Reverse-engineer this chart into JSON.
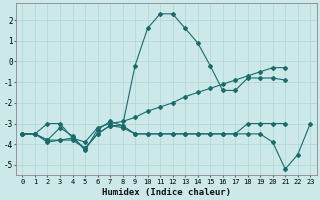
{
  "xlabel": "Humidex (Indice chaleur)",
  "background_color": "#cce8e8",
  "grid_color": "#afd4d4",
  "line_color": "#1a6b6b",
  "xlim": [
    -0.5,
    23.5
  ],
  "ylim": [
    -5.5,
    2.8
  ],
  "xticks": [
    0,
    1,
    2,
    3,
    4,
    5,
    6,
    7,
    8,
    9,
    10,
    11,
    12,
    13,
    14,
    15,
    16,
    17,
    18,
    19,
    20,
    21,
    22,
    23
  ],
  "yticks": [
    -5,
    -4,
    -3,
    -2,
    -1,
    0,
    1,
    2
  ],
  "lines": [
    {
      "x": [
        0,
        1,
        2,
        3,
        4,
        5,
        6,
        7,
        8,
        9,
        10,
        11,
        12,
        13,
        14,
        15,
        16,
        17,
        18,
        19,
        20,
        21
      ],
      "y": [
        -3.5,
        -3.5,
        -3.8,
        -3.2,
        -3.6,
        -4.3,
        -3.3,
        -2.9,
        -3.1,
        -0.2,
        1.6,
        2.3,
        2.3,
        1.6,
        0.9,
        -0.2,
        -1.4,
        -1.4,
        -0.8,
        -0.8,
        -0.8,
        -0.9
      ]
    },
    {
      "x": [
        0,
        1,
        2,
        3,
        4,
        5,
        6,
        7,
        8,
        9,
        10,
        11,
        12,
        13,
        14,
        15,
        16,
        17,
        18,
        19,
        20,
        21
      ],
      "y": [
        -3.5,
        -3.5,
        -3.9,
        -3.8,
        -3.8,
        -4.2,
        -3.5,
        -3.1,
        -3.1,
        -3.5,
        -3.5,
        -3.5,
        -3.5,
        -3.5,
        -3.5,
        -3.5,
        -3.5,
        -3.5,
        -3.0,
        -3.0,
        -3.0,
        -3.0
      ]
    },
    {
      "x": [
        0,
        1,
        2,
        3,
        4,
        5,
        6,
        7,
        8,
        9,
        10,
        11,
        12,
        13,
        14,
        15,
        16,
        17,
        18,
        19,
        20,
        21
      ],
      "y": [
        -3.5,
        -3.5,
        -3.0,
        -3.0,
        -3.7,
        -3.9,
        -3.2,
        -3.0,
        -2.9,
        -2.7,
        -2.4,
        -2.2,
        -2.0,
        -1.7,
        -1.5,
        -1.3,
        -1.1,
        -0.9,
        -0.7,
        -0.5,
        -0.3,
        -0.3
      ]
    },
    {
      "x": [
        0,
        1,
        2,
        3,
        4,
        5,
        6,
        7,
        8,
        9,
        10,
        11,
        12,
        13,
        14,
        15,
        16,
        17,
        18,
        19,
        20,
        21,
        22,
        23
      ],
      "y": [
        -3.5,
        -3.5,
        -3.8,
        -3.8,
        -3.7,
        -4.2,
        -3.5,
        -3.1,
        -3.2,
        -3.5,
        -3.5,
        -3.5,
        -3.5,
        -3.5,
        -3.5,
        -3.5,
        -3.5,
        -3.5,
        -3.5,
        -3.5,
        -3.9,
        -5.2,
        -4.5,
        -3.0
      ]
    }
  ]
}
